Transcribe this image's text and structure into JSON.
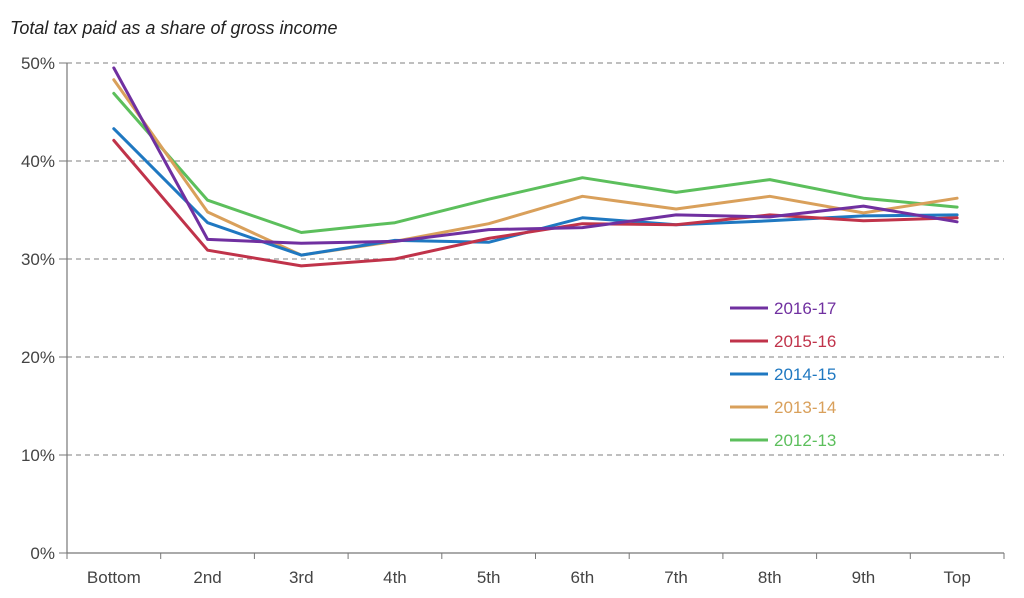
{
  "chart_data": {
    "type": "line",
    "title": "Total tax paid as a share of gross income",
    "xlabel": "",
    "ylabel": "",
    "categories": [
      "Bottom",
      "2nd",
      "3rd",
      "4th",
      "5th",
      "6th",
      "7th",
      "8th",
      "9th",
      "Top"
    ],
    "ylim": [
      0,
      50
    ],
    "yticks": [
      0,
      10,
      20,
      30,
      40,
      50
    ],
    "ytick_labels": [
      "0%",
      "10%",
      "20%",
      "30%",
      "40%",
      "50%"
    ],
    "grid": "horizontal dashed",
    "legend_position": "right",
    "series": [
      {
        "name": "2016-17",
        "color": "#7030a0",
        "values": [
          49.5,
          32.0,
          31.6,
          31.8,
          33.0,
          33.2,
          34.5,
          34.3,
          35.4,
          33.8
        ]
      },
      {
        "name": "2015-16",
        "color": "#c0334a",
        "values": [
          42.1,
          30.9,
          29.3,
          30.0,
          32.1,
          33.6,
          33.5,
          34.5,
          33.9,
          34.2
        ]
      },
      {
        "name": "2014-15",
        "color": "#1f78c1",
        "values": [
          43.3,
          33.7,
          30.4,
          31.9,
          31.7,
          34.2,
          33.5,
          33.9,
          34.4,
          34.5
        ]
      },
      {
        "name": "2013-14",
        "color": "#d9a05b",
        "values": [
          48.3,
          34.8,
          30.4,
          31.8,
          33.6,
          36.4,
          35.1,
          36.4,
          34.7,
          36.2
        ]
      },
      {
        "name": "2012-13",
        "color": "#5cbf5c",
        "values": [
          46.9,
          36.0,
          32.7,
          33.7,
          36.1,
          38.3,
          36.8,
          38.1,
          36.2,
          35.3
        ]
      }
    ]
  }
}
